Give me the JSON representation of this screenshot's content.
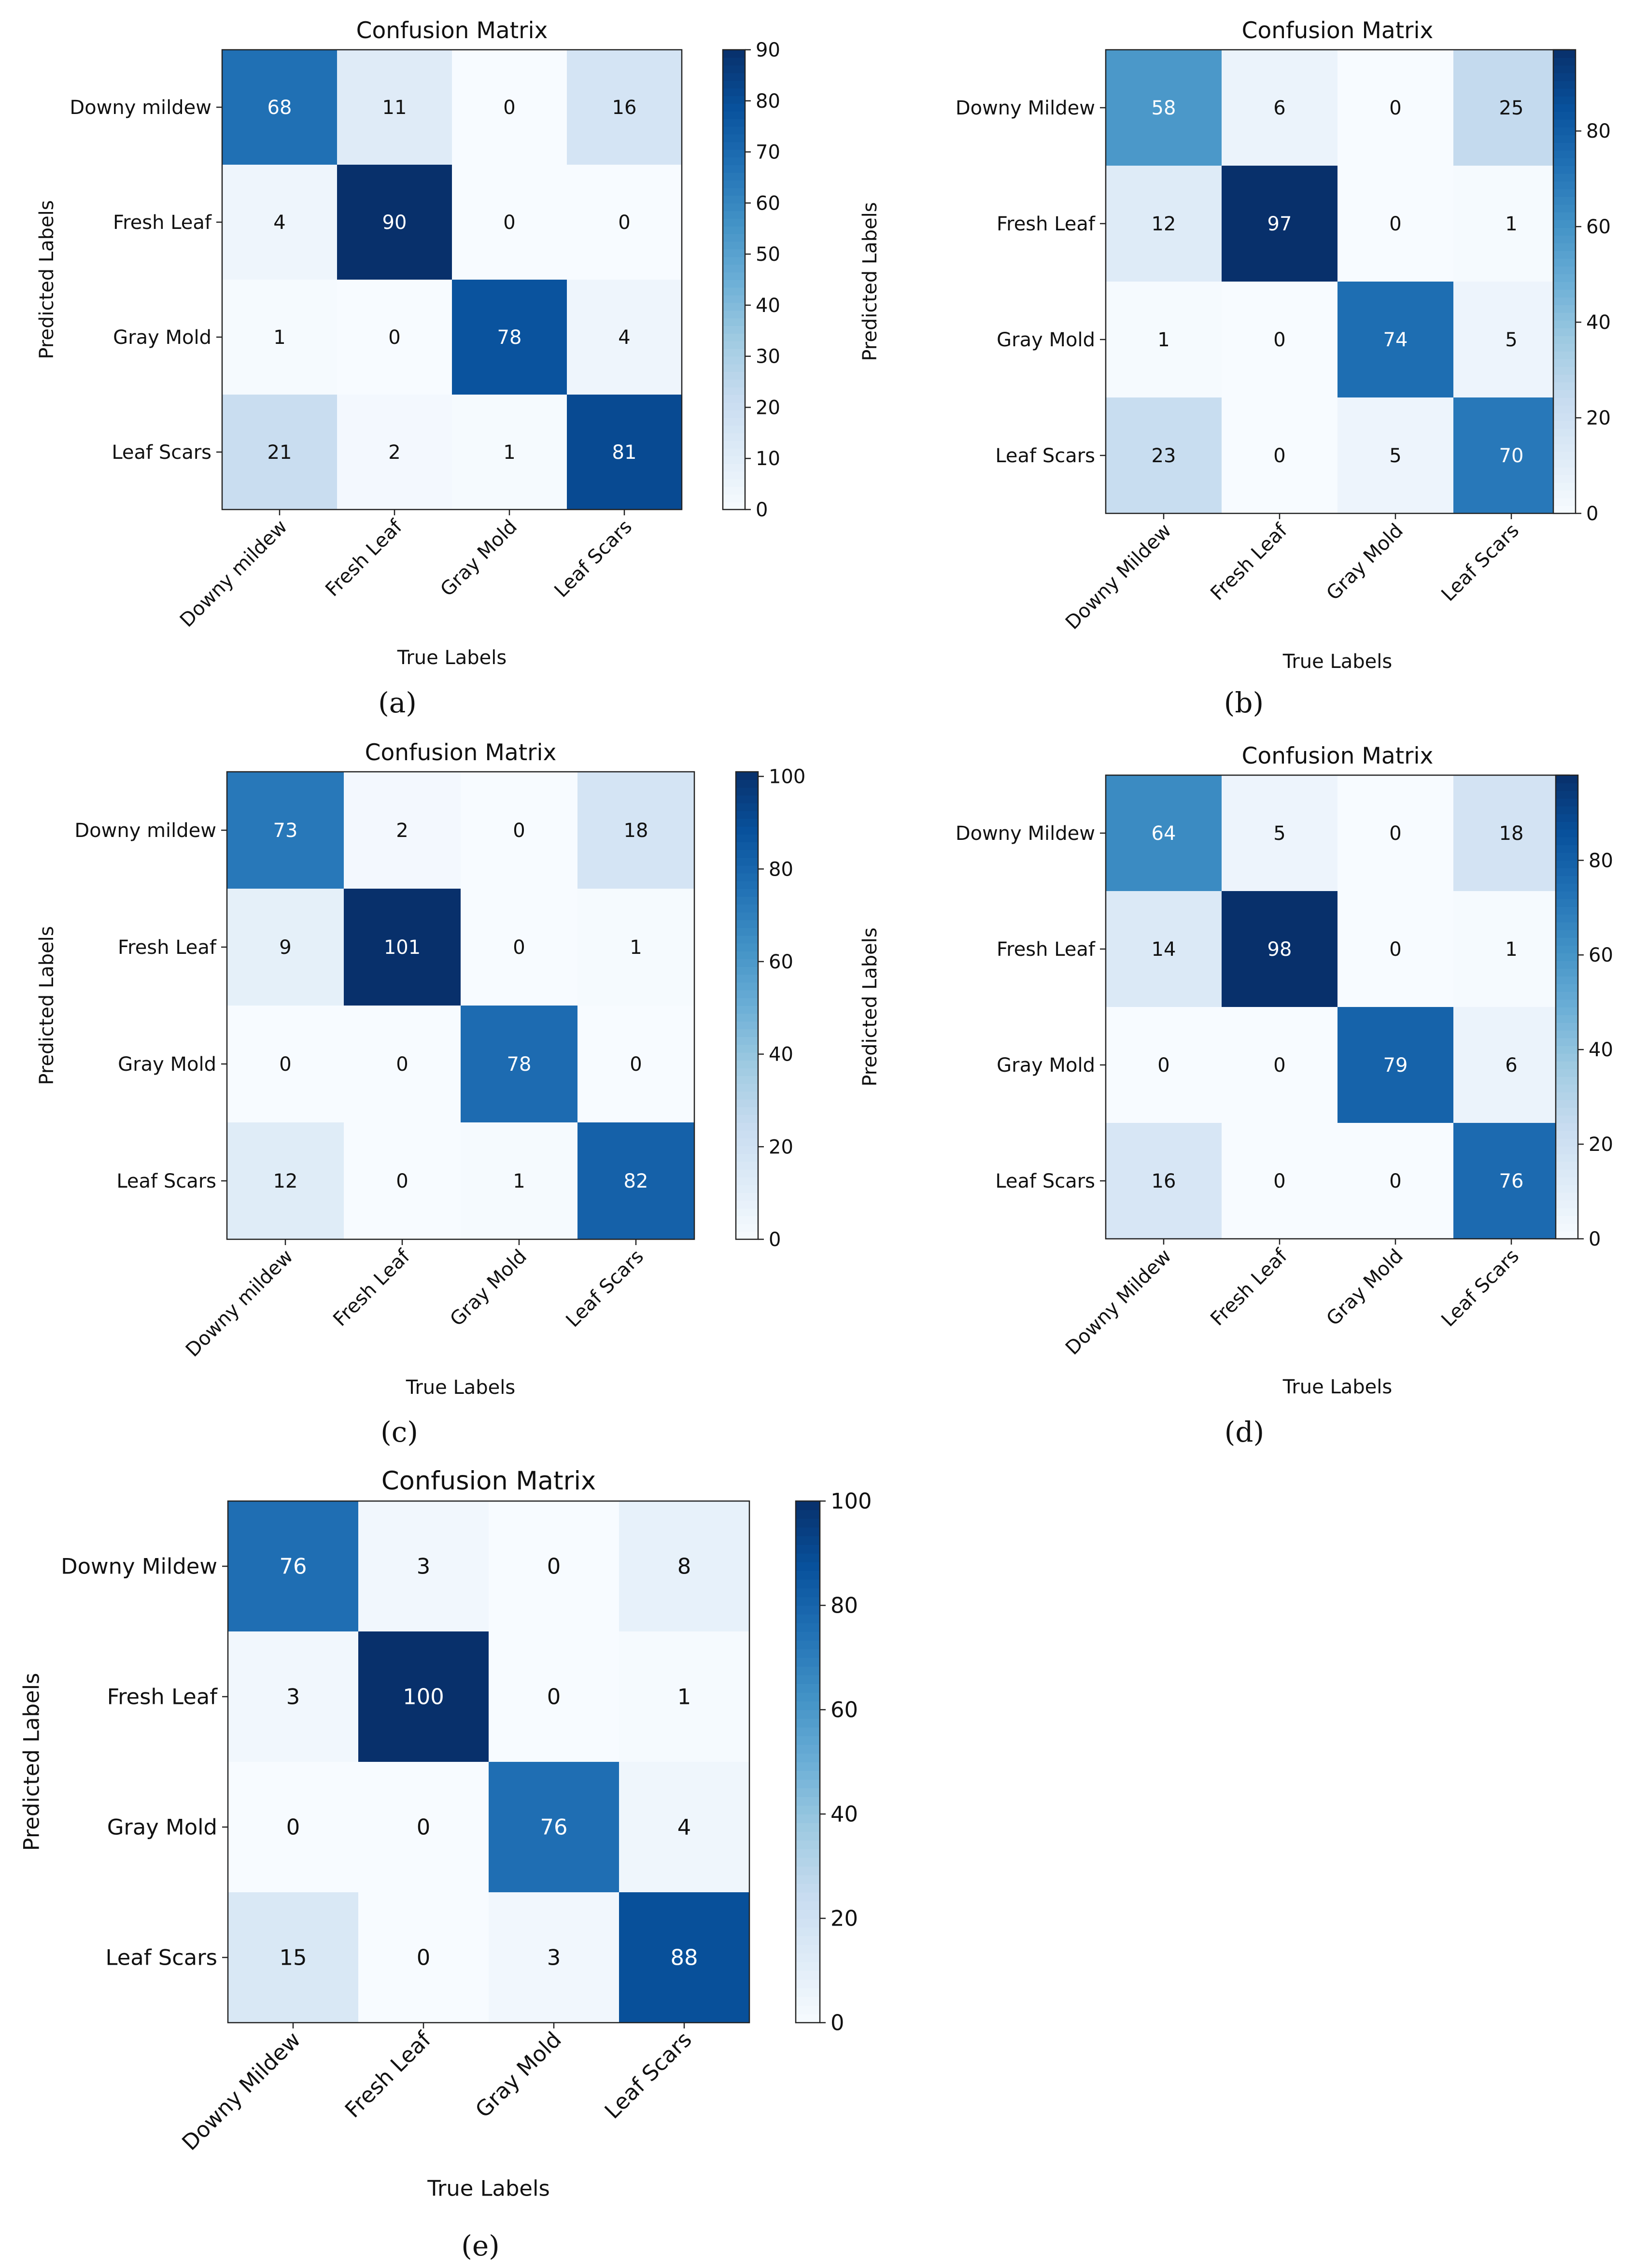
{
  "figure": {
    "panels": [
      {
        "caption": "(a)",
        "chart_data": {
          "type": "heatmap",
          "title": "Confusion Matrix",
          "xlabel": "True Labels",
          "ylabel": "Predicted Labels",
          "row_labels": [
            "Downy mildew",
            "Fresh Leaf",
            "Gray Mold",
            "Leaf Scars"
          ],
          "col_labels": [
            "Downy mildew",
            "Fresh Leaf",
            "Gray Mold",
            "Leaf Scars"
          ],
          "matrix": [
            [
              68,
              11,
              0,
              16
            ],
            [
              4,
              90,
              0,
              0
            ],
            [
              1,
              0,
              78,
              4
            ],
            [
              21,
              2,
              1,
              81
            ]
          ],
          "colorbar": {
            "min": 0,
            "max": 90,
            "ticks": [
              "0",
              "10",
              "20",
              "30",
              "40",
              "50",
              "60",
              "70",
              "80",
              "90"
            ],
            "tick_values": [
              0,
              10,
              20,
              30,
              40,
              50,
              60,
              70,
              80,
              90
            ]
          },
          "colormap": "Blues"
        }
      },
      {
        "caption": "(b)",
        "chart_data": {
          "type": "heatmap",
          "title": "Confusion Matrix",
          "xlabel": "True Labels",
          "ylabel": "Predicted Labels",
          "row_labels": [
            "Downy Mildew",
            "Fresh Leaf",
            "Gray Mold",
            "Leaf Scars"
          ],
          "col_labels": [
            "Downy Mildew",
            "Fresh Leaf",
            "Gray Mold",
            "Leaf Scars"
          ],
          "matrix": [
            [
              58,
              6,
              0,
              25
            ],
            [
              12,
              97,
              0,
              1
            ],
            [
              1,
              0,
              74,
              5
            ],
            [
              23,
              0,
              5,
              70
            ]
          ],
          "colorbar": {
            "min": 0,
            "max": 97,
            "ticks": [
              "0",
              "20",
              "40",
              "60",
              "80"
            ],
            "tick_values": [
              0,
              20,
              40,
              60,
              80
            ]
          },
          "colormap": "Blues"
        }
      },
      {
        "caption": "(c)",
        "chart_data": {
          "type": "heatmap",
          "title": "Confusion Matrix",
          "xlabel": "True Labels",
          "ylabel": "Predicted Labels",
          "row_labels": [
            "Downy mildew",
            "Fresh Leaf",
            "Gray Mold",
            "Leaf Scars"
          ],
          "col_labels": [
            "Downy mildew",
            "Fresh Leaf",
            "Gray Mold",
            "Leaf Scars"
          ],
          "matrix": [
            [
              73,
              2,
              0,
              18
            ],
            [
              9,
              101,
              0,
              1
            ],
            [
              0,
              0,
              78,
              0
            ],
            [
              12,
              0,
              1,
              82
            ]
          ],
          "colorbar": {
            "min": 0,
            "max": 101,
            "ticks": [
              "0",
              "20",
              "40",
              "60",
              "80",
              "100"
            ],
            "tick_values": [
              0,
              20,
              40,
              60,
              80,
              100
            ]
          },
          "colormap": "Blues"
        }
      },
      {
        "caption": "(d)",
        "chart_data": {
          "type": "heatmap",
          "title": "Confusion Matrix",
          "xlabel": "True Labels",
          "ylabel": "Predicted Labels",
          "row_labels": [
            "Downy Mildew",
            "Fresh Leaf",
            "Gray Mold",
            "Leaf Scars"
          ],
          "col_labels": [
            "Downy Mildew",
            "Fresh Leaf",
            "Gray Mold",
            "Leaf Scars"
          ],
          "matrix": [
            [
              64,
              5,
              0,
              18
            ],
            [
              14,
              98,
              0,
              1
            ],
            [
              0,
              0,
              79,
              6
            ],
            [
              16,
              0,
              0,
              76
            ]
          ],
          "colorbar": {
            "min": 0,
            "max": 98,
            "ticks": [
              "0",
              "20",
              "40",
              "60",
              "80"
            ],
            "tick_values": [
              0,
              20,
              40,
              60,
              80
            ]
          },
          "colormap": "Blues"
        }
      },
      {
        "caption": "(e)",
        "chart_data": {
          "type": "heatmap",
          "title": "Confusion Matrix",
          "xlabel": "True Labels",
          "ylabel": "Predicted Labels",
          "row_labels": [
            "Downy Mildew",
            "Fresh Leaf",
            "Gray Mold",
            "Leaf Scars"
          ],
          "col_labels": [
            "Downy Mildew",
            "Fresh Leaf",
            "Gray Mold",
            "Leaf Scars"
          ],
          "matrix": [
            [
              76,
              3,
              0,
              8
            ],
            [
              3,
              100,
              0,
              1
            ],
            [
              0,
              0,
              76,
              4
            ],
            [
              15,
              0,
              3,
              88
            ]
          ],
          "colorbar": {
            "min": 0,
            "max": 100,
            "ticks": [
              "0",
              "20",
              "40",
              "60",
              "80",
              "100"
            ],
            "tick_values": [
              0,
              20,
              40,
              60,
              80,
              100
            ]
          },
          "colormap": "Blues"
        }
      }
    ]
  }
}
